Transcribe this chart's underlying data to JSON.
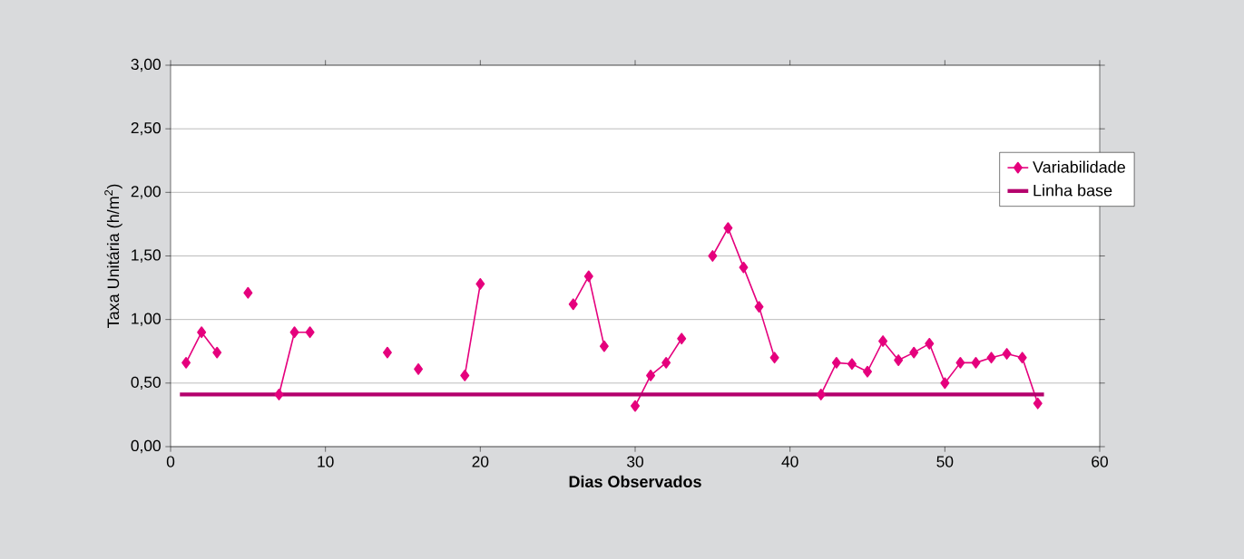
{
  "chart_data": {
    "type": "line",
    "xlabel": "Dias Observados",
    "ylabel": "Taxa Unitária (h/m$^{2}$)",
    "x": [
      1,
      2,
      3,
      4,
      5,
      6,
      7,
      8,
      9,
      10,
      11,
      12,
      13,
      14,
      15,
      16,
      17,
      18,
      19,
      20,
      21,
      22,
      23,
      24,
      25,
      26,
      27,
      28,
      29,
      30,
      31,
      32,
      33,
      34,
      35,
      36,
      37,
      38,
      39,
      40,
      41,
      42,
      43,
      44,
      45,
      46,
      47,
      48,
      49,
      50,
      51,
      52,
      53,
      54,
      55,
      56
    ],
    "series": [
      {
        "name": "Variabilidade",
        "color": "#e5007d",
        "marker": "diamond",
        "line_style": "solid",
        "values": [
          0.66,
          0.9,
          0.74,
          null,
          1.21,
          null,
          0.41,
          0.9,
          0.9,
          null,
          null,
          null,
          null,
          0.74,
          null,
          0.61,
          null,
          null,
          0.56,
          1.28,
          null,
          null,
          null,
          null,
          null,
          1.12,
          1.34,
          0.79,
          null,
          0.32,
          0.56,
          0.66,
          0.85,
          null,
          1.5,
          1.72,
          1.41,
          1.1,
          0.7,
          null,
          null,
          0.41,
          0.66,
          0.65,
          0.59,
          0.83,
          0.68,
          0.74,
          0.81,
          0.5,
          0.66,
          0.66,
          0.7,
          0.73,
          0.7,
          0.34
        ]
      },
      {
        "name": "Linha base",
        "color": "#b4006c",
        "marker": "none",
        "line_style": "solid",
        "x": [
          0.6,
          56.4
        ],
        "values": [
          0.41,
          0.41
        ]
      }
    ],
    "xlim": [
      0,
      60
    ],
    "ylim": [
      0,
      3
    ],
    "xticks": [
      0,
      10,
      20,
      30,
      40,
      50,
      60
    ],
    "yticks": [
      {
        "value": 0,
        "label": "0,00"
      },
      {
        "value": 0.5,
        "label": "0,50"
      },
      {
        "value": 1,
        "label": "1,00"
      },
      {
        "value": 1.5,
        "label": "1,50"
      },
      {
        "value": 2,
        "label": "2,00"
      },
      {
        "value": 2.5,
        "label": "2,50"
      },
      {
        "value": 3,
        "label": "3,00"
      }
    ],
    "grid": "y",
    "legend": "right"
  }
}
